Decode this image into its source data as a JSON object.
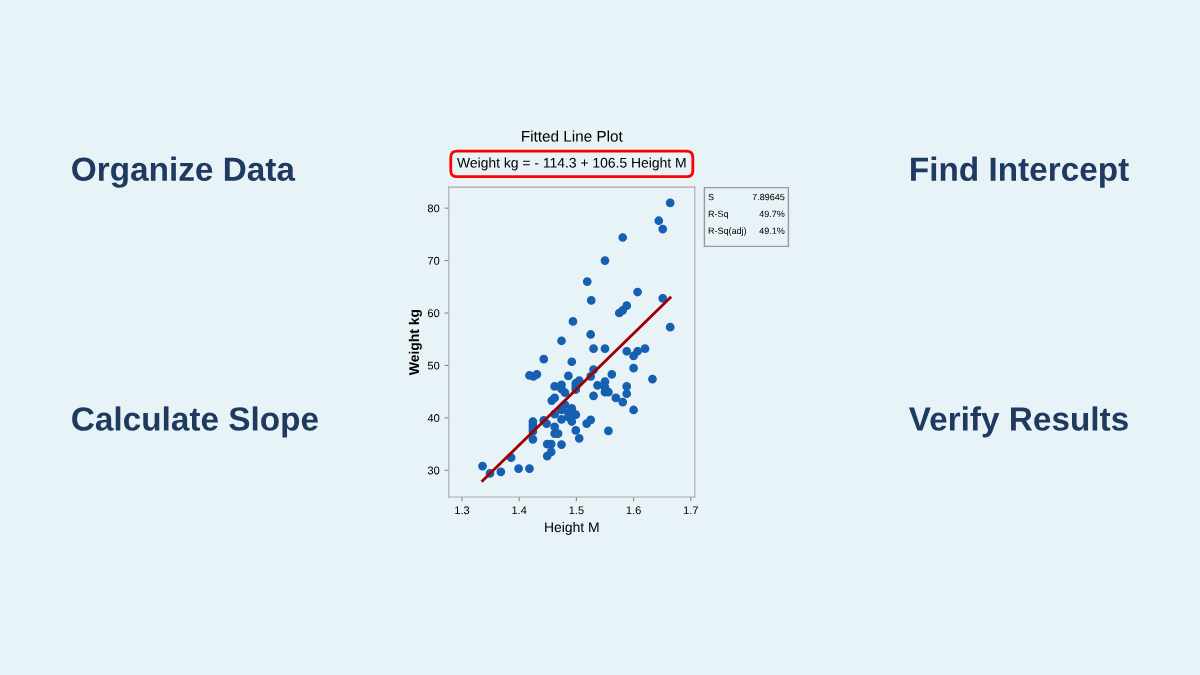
{
  "chart_data": {
    "type": "scatter",
    "title": "Fitted Line Plot",
    "subtitle": "Weight kg = - 114.3 + 106.5 Height M",
    "xlabel": "Height M",
    "ylabel": "Weight kg",
    "annotations": [
      "Organize Data",
      "Find Intercept",
      "Calculate Slope",
      "Verify Results",
      "S",
      "7.89645",
      "R-Sq",
      "49.7%",
      "R-Sq(adj)",
      "49.1%"
    ],
    "xlim": [
      1.277,
      1.707
    ],
    "xticks": [
      1.3,
      1.4,
      1.5,
      1.6,
      1.7
    ],
    "ylim": [
      24.9,
      84.0
    ],
    "yticks": [
      30,
      40,
      50,
      60,
      70,
      80
    ],
    "grid": false,
    "legend": false,
    "series": [
      {
        "marker": "circle",
        "color": "#1560b0",
        "x": [
          1.336,
          1.349,
          1.368,
          1.386,
          1.399,
          1.418,
          1.418,
          1.425,
          1.431,
          1.443,
          1.424,
          1.424,
          1.424,
          1.424,
          1.424,
          1.443,
          1.448,
          1.449,
          1.449,
          1.456,
          1.456,
          1.457,
          1.462,
          1.462,
          1.462,
          1.462,
          1.462,
          1.468,
          1.474,
          1.474,
          1.474,
          1.474,
          1.474,
          1.474,
          1.48,
          1.48,
          1.486,
          1.486,
          1.486,
          1.492,
          1.492,
          1.492,
          1.499,
          1.499,
          1.499,
          1.499,
          1.499,
          1.505,
          1.505,
          1.518,
          1.525,
          1.525,
          1.525,
          1.53,
          1.53,
          1.53,
          1.537,
          1.55,
          1.55,
          1.55,
          1.55,
          1.556,
          1.556,
          1.562,
          1.569,
          1.581,
          1.588,
          1.588,
          1.588,
          1.6,
          1.6,
          1.6,
          1.607,
          1.62,
          1.633,
          1.664,
          1.644,
          1.651,
          1.581,
          1.55,
          1.519,
          1.526,
          1.607,
          1.651,
          1.664,
          1.575,
          1.581,
          1.588,
          1.494
        ],
        "values": [
          30.8,
          29.4,
          29.7,
          32.4,
          30.3,
          30.3,
          48.1,
          47.9,
          48.3,
          51.2,
          39.3,
          38.6,
          38.0,
          37.4,
          35.9,
          39.5,
          38.9,
          35.0,
          32.7,
          35.0,
          33.5,
          43.3,
          43.8,
          46.0,
          40.7,
          38.3,
          37.0,
          37.0,
          54.7,
          46.3,
          45.5,
          41.5,
          39.7,
          34.9,
          44.8,
          42.5,
          48.0,
          41.0,
          40.2,
          50.7,
          41.8,
          39.3,
          46.6,
          46.0,
          45.4,
          40.6,
          37.6,
          47.1,
          36.1,
          38.9,
          39.6,
          47.9,
          55.9,
          53.2,
          49.2,
          44.2,
          46.2,
          53.2,
          46.9,
          45.8,
          44.9,
          44.9,
          37.5,
          48.3,
          43.8,
          43.0,
          52.7,
          46.0,
          44.6,
          51.8,
          49.5,
          41.5,
          52.7,
          53.2,
          47.4,
          81.0,
          77.6,
          76.0,
          74.4,
          70.0,
          66.0,
          62.4,
          64.0,
          62.8,
          57.3,
          60.0,
          60.5,
          61.4,
          58.4
        ]
      },
      {
        "type": "line",
        "marker": "none",
        "color": "#a00000",
        "x": [
          1.336,
          1.664
        ],
        "values": [
          28.0,
          62.9
        ]
      }
    ]
  }
}
